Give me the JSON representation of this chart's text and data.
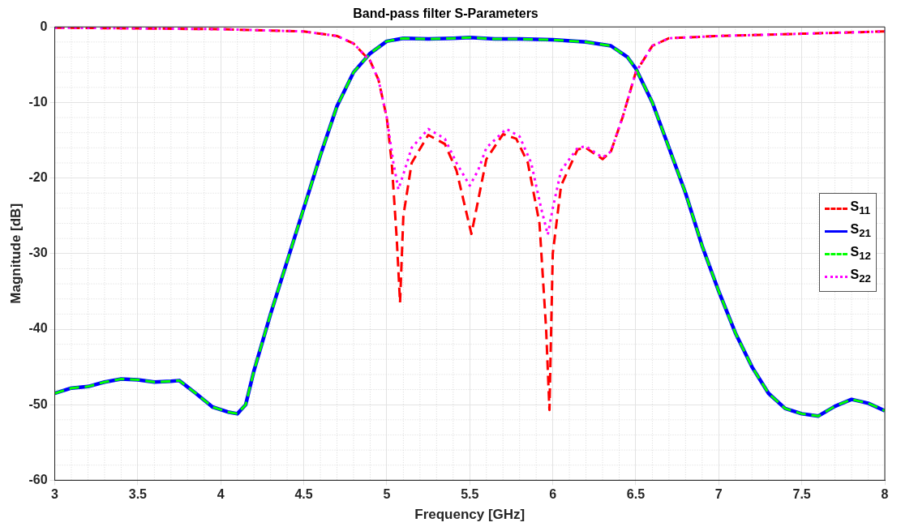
{
  "chart_data": {
    "type": "line",
    "title": "Band-pass filter S-Parameters",
    "xlabel": "Frequency [GHz]",
    "ylabel": "Magnitude [dB]",
    "xlim": [
      3,
      8
    ],
    "xticks": [
      3,
      3.5,
      4,
      4.5,
      5,
      5.5,
      6,
      6.5,
      7,
      7.5,
      8
    ],
    "ylim": [
      -60,
      0
    ],
    "yticks": [
      -60,
      -50,
      -40,
      -30,
      -20,
      -10,
      0
    ],
    "grid": true,
    "legend": "right",
    "marker": "none",
    "series": [
      {
        "name": "S$_{11}$",
        "color": "#ff0000",
        "line_style": "dashed",
        "x": [
          3,
          3.5,
          4,
          4.5,
          4.7,
          4.8,
          4.9,
          4.95,
          5,
          5.03,
          5.06,
          5.08,
          5.1,
          5.15,
          5.25,
          5.35,
          5.42,
          5.51,
          5.55,
          5.6,
          5.7,
          5.78,
          5.85,
          5.92,
          5.96,
          5.98,
          6,
          6.05,
          6.15,
          6.2,
          6.3,
          6.35,
          6.42,
          6.5,
          6.6,
          6.7,
          7,
          7.5,
          8
        ],
        "values": [
          -0.1,
          -0.2,
          -0.3,
          -0.6,
          -1.2,
          -2.2,
          -4.5,
          -7,
          -12,
          -18,
          -28,
          -36.5,
          -25,
          -18,
          -14.3,
          -15.5,
          -19,
          -27.4,
          -23,
          -17.5,
          -14.2,
          -14.8,
          -18,
          -26,
          -40,
          -50.7,
          -30,
          -21,
          -16.2,
          -16,
          -17.5,
          -16.5,
          -12,
          -6,
          -2.5,
          -1.5,
          -1.2,
          -0.9,
          -0.6
        ]
      },
      {
        "name": "S$_{21}$",
        "color": "#0000ff",
        "line_style": "solid",
        "x": [
          3,
          3.1,
          3.2,
          3.3,
          3.4,
          3.5,
          3.6,
          3.7,
          3.75,
          3.85,
          3.95,
          4.05,
          4.1,
          4.15,
          4.2,
          4.3,
          4.4,
          4.5,
          4.6,
          4.7,
          4.8,
          4.9,
          5,
          5.1,
          5.25,
          5.4,
          5.5,
          5.65,
          5.8,
          6,
          6.2,
          6.35,
          6.45,
          6.5,
          6.6,
          6.7,
          6.8,
          6.9,
          7,
          7.1,
          7.2,
          7.3,
          7.4,
          7.5,
          7.6,
          7.7,
          7.8,
          7.9,
          8
        ],
        "values": [
          -48.5,
          -47.8,
          -47.6,
          -47,
          -46.6,
          -46.7,
          -47,
          -46.9,
          -46.8,
          -48.5,
          -50.3,
          -51,
          -51.2,
          -50,
          -45.5,
          -38,
          -31,
          -24,
          -17,
          -10.5,
          -6,
          -3.5,
          -1.9,
          -1.5,
          -1.6,
          -1.5,
          -1.4,
          -1.6,
          -1.6,
          -1.7,
          -2,
          -2.5,
          -4,
          -5.5,
          -10,
          -16,
          -22,
          -29,
          -35,
          -40.5,
          -45,
          -48.5,
          -50.5,
          -51.2,
          -51.5,
          -50.2,
          -49.3,
          -49.8,
          -50.8
        ]
      },
      {
        "name": "S$_{12}$",
        "color": "#00ff00",
        "line_style": "dashed",
        "x": [
          3,
          3.1,
          3.2,
          3.3,
          3.4,
          3.5,
          3.6,
          3.7,
          3.75,
          3.85,
          3.95,
          4.05,
          4.1,
          4.15,
          4.2,
          4.3,
          4.4,
          4.5,
          4.6,
          4.7,
          4.8,
          4.9,
          5,
          5.1,
          5.25,
          5.4,
          5.5,
          5.65,
          5.8,
          6,
          6.2,
          6.35,
          6.45,
          6.5,
          6.6,
          6.7,
          6.8,
          6.9,
          7,
          7.1,
          7.2,
          7.3,
          7.4,
          7.5,
          7.6,
          7.7,
          7.8,
          7.9,
          8
        ],
        "values": [
          -48.5,
          -47.8,
          -47.6,
          -47,
          -46.6,
          -46.7,
          -47,
          -46.9,
          -46.8,
          -48.5,
          -50.3,
          -51,
          -51.2,
          -50,
          -45.5,
          -38,
          -31,
          -24,
          -17,
          -10.5,
          -6,
          -3.5,
          -1.9,
          -1.5,
          -1.6,
          -1.5,
          -1.4,
          -1.6,
          -1.6,
          -1.7,
          -2,
          -2.5,
          -4,
          -5.5,
          -10,
          -16,
          -22,
          -29,
          -35,
          -40.5,
          -45,
          -48.5,
          -50.5,
          -51.2,
          -51.5,
          -50.2,
          -49.3,
          -49.8,
          -50.8
        ]
      },
      {
        "name": "S$_{22}$",
        "color": "#ff00ff",
        "line_style": "dotted",
        "x": [
          3,
          3.5,
          4,
          4.5,
          4.7,
          4.8,
          4.9,
          4.95,
          5,
          5.04,
          5.07,
          5.1,
          5.15,
          5.25,
          5.35,
          5.42,
          5.5,
          5.55,
          5.6,
          5.72,
          5.8,
          5.87,
          5.93,
          5.97,
          6,
          6.05,
          6.15,
          6.2,
          6.3,
          6.35,
          6.42,
          6.5,
          6.6,
          6.7,
          7,
          7.5,
          8
        ],
        "values": [
          -0.1,
          -0.2,
          -0.3,
          -0.6,
          -1.2,
          -2.2,
          -4.5,
          -7,
          -12,
          -18,
          -21.5,
          -19.5,
          -16,
          -13.5,
          -14.8,
          -18,
          -21,
          -19,
          -16,
          -13.5,
          -14.5,
          -18,
          -24,
          -27.5,
          -24,
          -19,
          -16,
          -15.8,
          -17.3,
          -16.5,
          -12,
          -6,
          -2.5,
          -1.5,
          -1.2,
          -0.9,
          -0.6
        ]
      }
    ]
  }
}
